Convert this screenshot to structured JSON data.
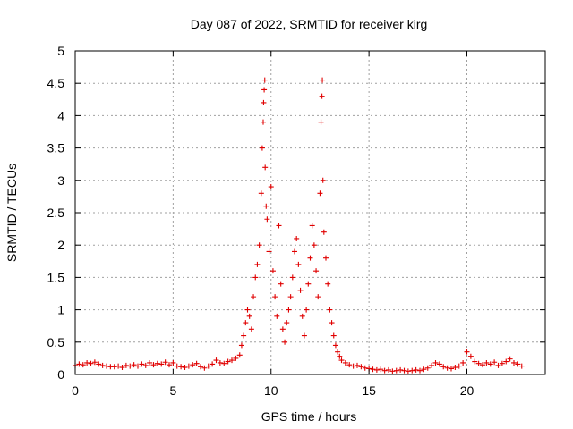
{
  "chart_data": {
    "type": "scatter",
    "title": "Day 087 of 2022, SRMTID for receiver kirg",
    "xlabel": "GPS time / hours",
    "ylabel": "SRMTID / TECUs",
    "xlim": [
      0,
      24
    ],
    "ylim": [
      0,
      5
    ],
    "x_ticks": [
      0,
      5,
      10,
      15,
      20
    ],
    "x_tick_labels": [
      "0",
      "5",
      "10",
      "15",
      "20"
    ],
    "y_ticks": [
      0,
      0.5,
      1,
      1.5,
      2,
      2.5,
      3,
      3.5,
      4,
      4.5,
      5
    ],
    "y_tick_labels": [
      "0",
      "0.5",
      "1",
      "1.5",
      "2",
      "2.5",
      "3",
      "3.5",
      "4",
      "4.5",
      "5"
    ],
    "grid": true,
    "marker": "plus",
    "color": "#e00000",
    "series": [
      {
        "name": "SRMTID",
        "points": [
          [
            0.0,
            0.14
          ],
          [
            0.2,
            0.16
          ],
          [
            0.4,
            0.15
          ],
          [
            0.6,
            0.18
          ],
          [
            0.8,
            0.17
          ],
          [
            1.0,
            0.19
          ],
          [
            1.2,
            0.16
          ],
          [
            1.4,
            0.14
          ],
          [
            1.6,
            0.13
          ],
          [
            1.8,
            0.12
          ],
          [
            2.0,
            0.12
          ],
          [
            2.2,
            0.13
          ],
          [
            2.4,
            0.11
          ],
          [
            2.6,
            0.14
          ],
          [
            2.8,
            0.13
          ],
          [
            3.0,
            0.15
          ],
          [
            3.2,
            0.13
          ],
          [
            3.4,
            0.16
          ],
          [
            3.6,
            0.14
          ],
          [
            3.8,
            0.18
          ],
          [
            4.0,
            0.15
          ],
          [
            4.2,
            0.17
          ],
          [
            4.4,
            0.16
          ],
          [
            4.6,
            0.19
          ],
          [
            4.8,
            0.15
          ],
          [
            5.0,
            0.18
          ],
          [
            5.2,
            0.13
          ],
          [
            5.4,
            0.12
          ],
          [
            5.6,
            0.11
          ],
          [
            5.8,
            0.13
          ],
          [
            6.0,
            0.15
          ],
          [
            6.2,
            0.17
          ],
          [
            6.4,
            0.12
          ],
          [
            6.6,
            0.1
          ],
          [
            6.8,
            0.13
          ],
          [
            7.0,
            0.16
          ],
          [
            7.2,
            0.22
          ],
          [
            7.4,
            0.18
          ],
          [
            7.6,
            0.17
          ],
          [
            7.8,
            0.2
          ],
          [
            8.0,
            0.22
          ],
          [
            8.2,
            0.25
          ],
          [
            8.4,
            0.3
          ],
          [
            8.5,
            0.45
          ],
          [
            8.6,
            0.6
          ],
          [
            8.7,
            0.8
          ],
          [
            8.8,
            1.0
          ],
          [
            8.9,
            0.9
          ],
          [
            9.0,
            0.7
          ],
          [
            9.1,
            1.2
          ],
          [
            9.2,
            1.5
          ],
          [
            9.3,
            1.7
          ],
          [
            9.4,
            2.0
          ],
          [
            9.5,
            2.8
          ],
          [
            9.55,
            3.5
          ],
          [
            9.6,
            3.9
          ],
          [
            9.62,
            4.2
          ],
          [
            9.65,
            4.4
          ],
          [
            9.68,
            4.55
          ],
          [
            9.7,
            3.2
          ],
          [
            9.75,
            2.6
          ],
          [
            9.8,
            2.4
          ],
          [
            9.9,
            1.9
          ],
          [
            10.0,
            2.9
          ],
          [
            10.1,
            1.6
          ],
          [
            10.2,
            1.2
          ],
          [
            10.3,
            0.9
          ],
          [
            10.4,
            2.3
          ],
          [
            10.5,
            1.4
          ],
          [
            10.6,
            0.7
          ],
          [
            10.7,
            0.5
          ],
          [
            10.8,
            0.8
          ],
          [
            10.9,
            1.0
          ],
          [
            11.0,
            1.2
          ],
          [
            11.1,
            1.5
          ],
          [
            11.2,
            1.9
          ],
          [
            11.3,
            2.1
          ],
          [
            11.4,
            1.7
          ],
          [
            11.5,
            1.3
          ],
          [
            11.6,
            0.9
          ],
          [
            11.7,
            0.6
          ],
          [
            11.8,
            1.0
          ],
          [
            11.9,
            1.4
          ],
          [
            12.0,
            1.8
          ],
          [
            12.1,
            2.3
          ],
          [
            12.2,
            2.0
          ],
          [
            12.3,
            1.6
          ],
          [
            12.4,
            1.2
          ],
          [
            12.5,
            2.8
          ],
          [
            12.55,
            3.9
          ],
          [
            12.6,
            4.3
          ],
          [
            12.62,
            4.55
          ],
          [
            12.65,
            3.0
          ],
          [
            12.7,
            2.2
          ],
          [
            12.8,
            1.8
          ],
          [
            12.9,
            1.4
          ],
          [
            13.0,
            1.0
          ],
          [
            13.1,
            0.8
          ],
          [
            13.2,
            0.6
          ],
          [
            13.3,
            0.45
          ],
          [
            13.4,
            0.35
          ],
          [
            13.5,
            0.28
          ],
          [
            13.6,
            0.22
          ],
          [
            13.8,
            0.18
          ],
          [
            14.0,
            0.15
          ],
          [
            14.2,
            0.13
          ],
          [
            14.4,
            0.14
          ],
          [
            14.6,
            0.12
          ],
          [
            14.8,
            0.1
          ],
          [
            15.0,
            0.09
          ],
          [
            15.2,
            0.08
          ],
          [
            15.4,
            0.07
          ],
          [
            15.6,
            0.08
          ],
          [
            15.8,
            0.06
          ],
          [
            16.0,
            0.07
          ],
          [
            16.2,
            0.05
          ],
          [
            16.4,
            0.06
          ],
          [
            16.6,
            0.07
          ],
          [
            16.8,
            0.06
          ],
          [
            17.0,
            0.05
          ],
          [
            17.2,
            0.06
          ],
          [
            17.4,
            0.07
          ],
          [
            17.6,
            0.06
          ],
          [
            17.8,
            0.08
          ],
          [
            18.0,
            0.1
          ],
          [
            18.2,
            0.14
          ],
          [
            18.4,
            0.18
          ],
          [
            18.6,
            0.16
          ],
          [
            18.8,
            0.12
          ],
          [
            19.0,
            0.1
          ],
          [
            19.2,
            0.09
          ],
          [
            19.4,
            0.11
          ],
          [
            19.6,
            0.13
          ],
          [
            19.8,
            0.18
          ],
          [
            20.0,
            0.35
          ],
          [
            20.2,
            0.28
          ],
          [
            20.4,
            0.2
          ],
          [
            20.6,
            0.17
          ],
          [
            20.8,
            0.15
          ],
          [
            21.0,
            0.18
          ],
          [
            21.2,
            0.16
          ],
          [
            21.4,
            0.19
          ],
          [
            21.6,
            0.14
          ],
          [
            21.8,
            0.17
          ],
          [
            22.0,
            0.2
          ],
          [
            22.2,
            0.24
          ],
          [
            22.4,
            0.18
          ],
          [
            22.6,
            0.16
          ],
          [
            22.8,
            0.13
          ]
        ]
      }
    ]
  }
}
